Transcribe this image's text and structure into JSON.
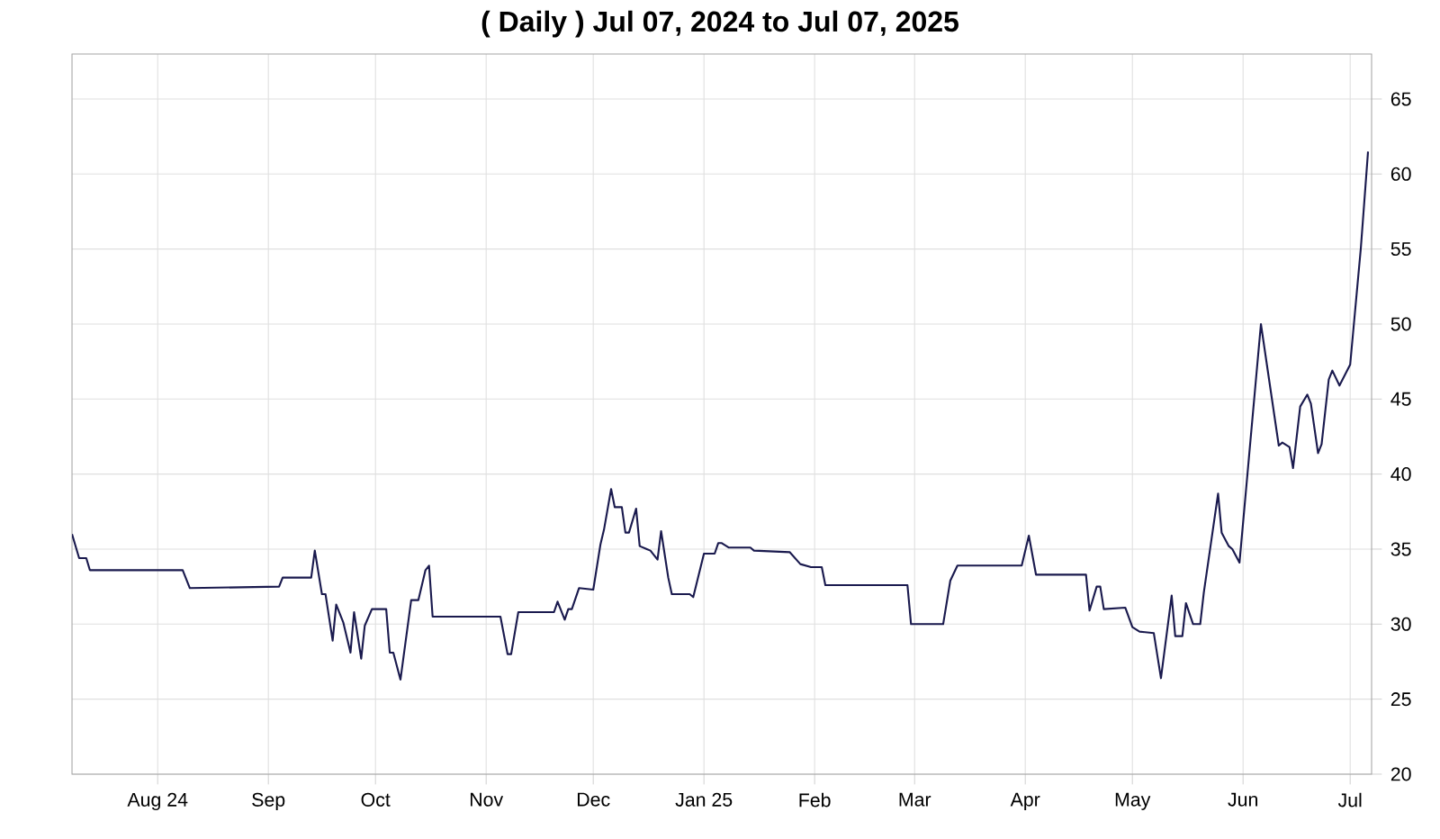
{
  "chart_data": {
    "type": "line",
    "title": "( Daily ) Jul 07, 2024 to Jul 07, 2025",
    "x": [
      "2024-07-08",
      "2024-07-10",
      "2024-07-12",
      "2024-07-13",
      "2024-08-08",
      "2024-08-10",
      "2024-09-04",
      "2024-09-05",
      "2024-09-13",
      "2024-09-14",
      "2024-09-16",
      "2024-09-17",
      "2024-09-19",
      "2024-09-20",
      "2024-09-22",
      "2024-09-24",
      "2024-09-25",
      "2024-09-27",
      "2024-09-28",
      "2024-09-30",
      "2024-10-04",
      "2024-10-05",
      "2024-10-06",
      "2024-10-08",
      "2024-10-11",
      "2024-10-13",
      "2024-10-15",
      "2024-10-16",
      "2024-10-17",
      "2024-11-05",
      "2024-11-07",
      "2024-11-08",
      "2024-11-10",
      "2024-11-20",
      "2024-11-21",
      "2024-11-23",
      "2024-11-24",
      "2024-11-25",
      "2024-11-27",
      "2024-12-01",
      "2024-12-03",
      "2024-12-04",
      "2024-12-06",
      "2024-12-07",
      "2024-12-09",
      "2024-12-10",
      "2024-12-11",
      "2024-12-13",
      "2024-12-14",
      "2024-12-16",
      "2024-12-17",
      "2024-12-19",
      "2024-12-20",
      "2024-12-22",
      "2024-12-23",
      "2024-12-28",
      "2024-12-29",
      "2025-01-01",
      "2025-01-04",
      "2025-01-05",
      "2025-01-06",
      "2025-01-08",
      "2025-01-14",
      "2025-01-15",
      "2025-01-25",
      "2025-01-28",
      "2025-01-31",
      "2025-02-03",
      "2025-02-04",
      "2025-02-27",
      "2025-02-28",
      "2025-03-09",
      "2025-03-11",
      "2025-03-13",
      "2025-03-31",
      "2025-04-02",
      "2025-04-04",
      "2025-04-18",
      "2025-04-19",
      "2025-04-21",
      "2025-04-22",
      "2025-04-23",
      "2025-04-29",
      "2025-05-01",
      "2025-05-03",
      "2025-05-07",
      "2025-05-09",
      "2025-05-12",
      "2025-05-13",
      "2025-05-15",
      "2025-05-16",
      "2025-05-18",
      "2025-05-20",
      "2025-05-21",
      "2025-05-25",
      "2025-05-26",
      "2025-05-28",
      "2025-05-29",
      "2025-05-31",
      "2025-06-06",
      "2025-06-11",
      "2025-06-12",
      "2025-06-14",
      "2025-06-15",
      "2025-06-17",
      "2025-06-19",
      "2025-06-20",
      "2025-06-22",
      "2025-06-23",
      "2025-06-25",
      "2025-06-26",
      "2025-06-28",
      "2025-07-01",
      "2025-07-04",
      "2025-07-06"
    ],
    "values": [
      36.0,
      34.4,
      34.4,
      33.6,
      33.6,
      32.4,
      32.5,
      33.1,
      33.1,
      34.9,
      32.0,
      32.0,
      28.9,
      31.3,
      30.1,
      28.1,
      30.8,
      27.7,
      29.9,
      31.0,
      31.0,
      28.1,
      28.1,
      26.3,
      31.6,
      31.6,
      33.6,
      33.9,
      30.5,
      30.5,
      28.0,
      28.0,
      30.8,
      30.8,
      31.5,
      30.3,
      31.0,
      31.0,
      32.4,
      32.3,
      35.3,
      36.3,
      39.0,
      37.8,
      37.8,
      36.1,
      36.1,
      37.7,
      35.2,
      35.0,
      34.9,
      34.3,
      36.2,
      33.1,
      32.0,
      32.0,
      31.8,
      34.7,
      34.7,
      35.4,
      35.4,
      35.1,
      35.1,
      34.9,
      34.8,
      34.0,
      33.8,
      33.8,
      32.6,
      32.6,
      30.0,
      30.0,
      32.9,
      33.9,
      33.9,
      35.9,
      33.3,
      33.3,
      30.9,
      32.5,
      32.5,
      31.0,
      31.1,
      29.8,
      29.5,
      29.4,
      26.4,
      31.9,
      29.2,
      29.2,
      31.4,
      30.0,
      30.0,
      32.1,
      38.7,
      36.1,
      35.2,
      35.0,
      34.1,
      50.0,
      41.9,
      42.1,
      41.8,
      40.4,
      44.5,
      45.3,
      44.7,
      41.4,
      42.0,
      46.3,
      46.9,
      45.9,
      47.3,
      55.1,
      61.5
    ],
    "color": "#1a1a4e",
    "xlim": [
      "2024-07-08",
      "2025-07-07"
    ],
    "xticks": [
      {
        "value": "2024-08-01",
        "label": "Aug 24"
      },
      {
        "value": "2024-09-01",
        "label": "Sep"
      },
      {
        "value": "2024-10-01",
        "label": "Oct"
      },
      {
        "value": "2024-11-01",
        "label": "Nov"
      },
      {
        "value": "2024-12-01",
        "label": "Dec"
      },
      {
        "value": "2025-01-01",
        "label": "Jan 25"
      },
      {
        "value": "2025-02-01",
        "label": "Feb"
      },
      {
        "value": "2025-03-01",
        "label": "Mar"
      },
      {
        "value": "2025-04-01",
        "label": "Apr"
      },
      {
        "value": "2025-05-01",
        "label": "May"
      },
      {
        "value": "2025-06-01",
        "label": "Jun"
      },
      {
        "value": "2025-07-01",
        "label": "Jul"
      }
    ],
    "ylim": [
      20,
      68
    ],
    "yticks": [
      20,
      25,
      30,
      35,
      40,
      45,
      50,
      55,
      60,
      65
    ],
    "grid": true
  }
}
